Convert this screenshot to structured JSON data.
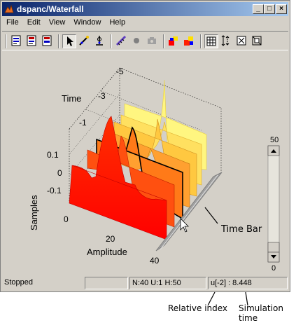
{
  "window": {
    "title": "dspanc/Waterfall",
    "minimize_glyph": "_",
    "maximize_glyph": "□",
    "close_glyph": "×"
  },
  "menu": [
    {
      "label": "File"
    },
    {
      "label": "Edit"
    },
    {
      "label": "View"
    },
    {
      "label": "Window"
    },
    {
      "label": "Help"
    }
  ],
  "toolbar": {
    "buttons": [
      {
        "name": "parameters-icon"
      },
      {
        "name": "export-icon"
      },
      {
        "name": "trigger-icon"
      },
      {
        "name": "select-pointer-icon",
        "pressed": true
      },
      {
        "name": "zoom-x-icon"
      },
      {
        "name": "zoom-y-icon"
      },
      {
        "name": "measure-icon"
      },
      {
        "name": "record-icon"
      },
      {
        "name": "camera-icon"
      },
      {
        "name": "color-map-icon"
      },
      {
        "name": "color-map-reverse-icon"
      },
      {
        "name": "grid-icon",
        "pressed": true
      },
      {
        "name": "autoscale-icon"
      },
      {
        "name": "fit-axes-icon"
      },
      {
        "name": "zoom-box-icon"
      }
    ]
  },
  "plot": {
    "axes": {
      "time_label": "Time",
      "samples_label": "Samples",
      "amplitude_label": "Amplitude",
      "time_ticks": [
        "-5",
        "-3",
        "-1"
      ],
      "samples_ticks": [
        "0.1",
        "0",
        "-0.1"
      ],
      "amplitude_ticks": [
        "0",
        "20",
        "40"
      ]
    },
    "time_bar_label": "Time Bar",
    "colors": {
      "newest": "#ff1000",
      "mid": "#ff7a10",
      "oldest": "#fff070",
      "highlight_trace": "#000000"
    }
  },
  "slider": {
    "max_label": "50",
    "min_label": "0",
    "value": 0
  },
  "status": {
    "state": "Stopped",
    "dims": "N:40 U:1 H:50",
    "readout": "u[-2] : 8.448"
  },
  "callouts": {
    "relative_index": "Relative index",
    "simulation_time": "Simulation time"
  }
}
